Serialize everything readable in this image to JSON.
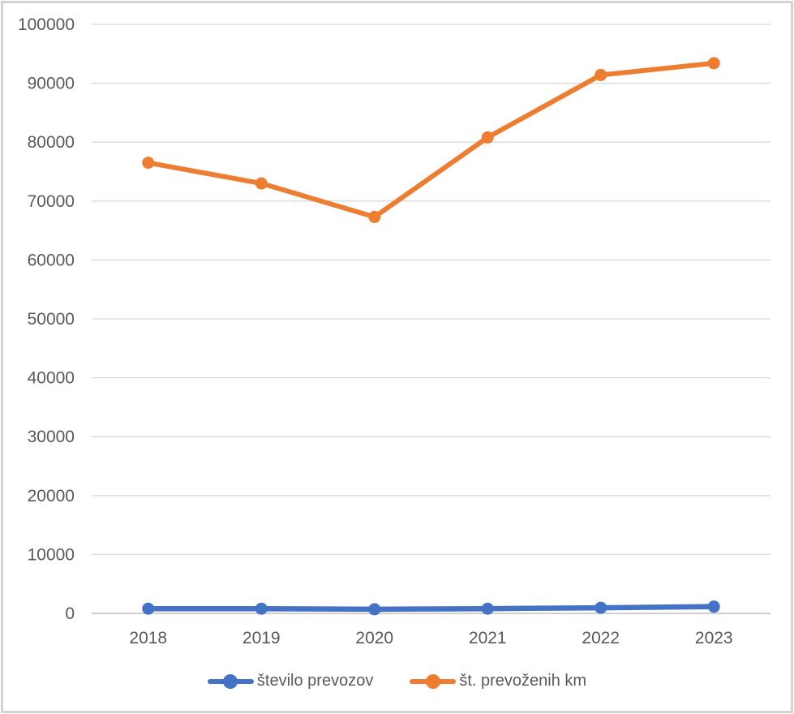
{
  "chart_data": {
    "type": "line",
    "categories": [
      "2018",
      "2019",
      "2020",
      "2021",
      "2022",
      "2023"
    ],
    "series": [
      {
        "name": "število prevozov",
        "color": "#4472C4",
        "values": [
          800,
          800,
          700,
          800,
          950,
          1150
        ]
      },
      {
        "name": "št. prevoženih km",
        "color": "#ED7D31",
        "values": [
          76500,
          73000,
          67300,
          80800,
          91400,
          93400
        ]
      }
    ],
    "title": "",
    "xlabel": "",
    "ylabel": "",
    "ylim": [
      0,
      100000
    ],
    "ytick_step": 10000,
    "yticks": [
      0,
      10000,
      20000,
      30000,
      40000,
      50000,
      60000,
      70000,
      80000,
      90000,
      100000
    ],
    "grid": "horizontal-gridlines-on",
    "legend_position": "bottom",
    "marker": "circle"
  },
  "colors": {
    "axis_line": "#bfbfbf",
    "gridline": "#d9d9d9",
    "tick_label": "#595959",
    "background": "#ffffff",
    "border": "#d3d3d3"
  }
}
